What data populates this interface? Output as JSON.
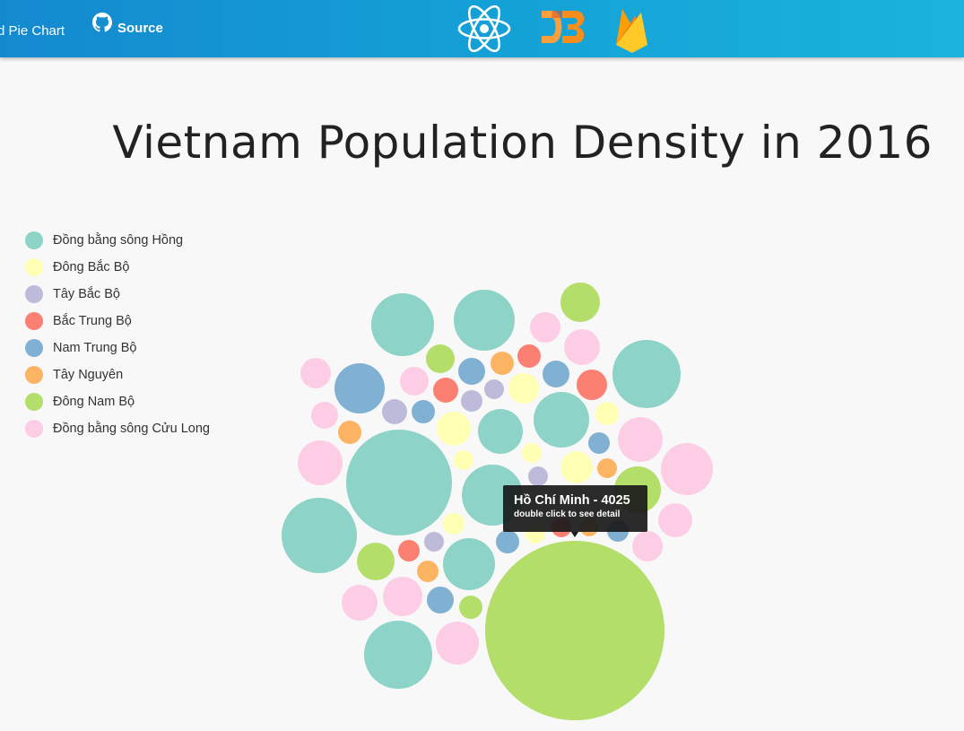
{
  "nav": {
    "item1_label": "d Pie Chart",
    "item2_label": "Source",
    "logos": [
      "react-logo",
      "d3-logo",
      "firebase-logo"
    ]
  },
  "page": {
    "title": "Vietnam Population Density in 2016"
  },
  "legend": [
    {
      "label": "Đồng bằng sông Hồng",
      "color": "#8dd3c7"
    },
    {
      "label": "Đông Bắc Bộ",
      "color": "#ffffb3"
    },
    {
      "label": "Tây Bắc Bộ",
      "color": "#bebada"
    },
    {
      "label": "Bắc Trung Bộ",
      "color": "#fb8072"
    },
    {
      "label": "Nam Trung Bộ",
      "color": "#80b1d3"
    },
    {
      "label": "Tây Nguyên",
      "color": "#fdb462"
    },
    {
      "label": "Đông Nam Bộ",
      "color": "#b3de69"
    },
    {
      "label": "Đồng bằng sông Cửu Long",
      "color": "#fccde5"
    }
  ],
  "tooltip": {
    "name": "Hồ Chí Minh - 4025",
    "hint": "double click to see detail"
  },
  "chart_data": {
    "type": "bubble",
    "title": "Vietnam Population Density in 2016",
    "legend_position": "left",
    "highlighted": {
      "name": "Hồ Chí Minh",
      "region": "Đông Nam Bộ",
      "value": 4025
    }
  }
}
